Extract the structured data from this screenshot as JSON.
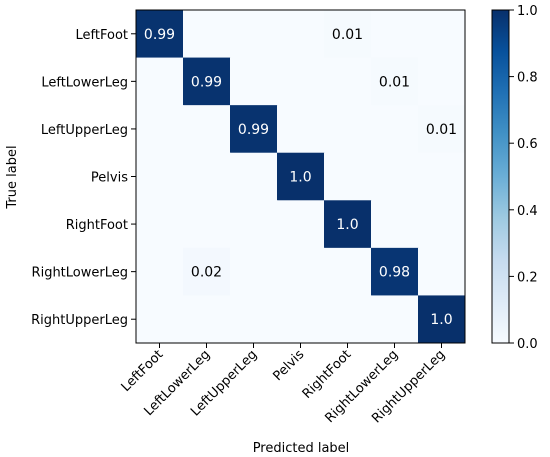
{
  "chart_data": {
    "type": "heatmap",
    "xlabel": "Predicted label",
    "ylabel": "True label",
    "row_labels": [
      "LeftFoot",
      "LeftLowerLeg",
      "LeftUpperLeg",
      "Pelvis",
      "RightFoot",
      "RightLowerLeg",
      "RightUpperLeg"
    ],
    "col_labels": [
      "LeftFoot",
      "LeftLowerLeg",
      "LeftUpperLeg",
      "Pelvis",
      "RightFoot",
      "RightLowerLeg",
      "RightUpperLeg"
    ],
    "values": [
      [
        0.99,
        0,
        0,
        0,
        0.01,
        0,
        0
      ],
      [
        0,
        0.99,
        0,
        0,
        0,
        0.01,
        0
      ],
      [
        0,
        0,
        0.99,
        0,
        0,
        0,
        0.01
      ],
      [
        0,
        0,
        0,
        1.0,
        0,
        0,
        0
      ],
      [
        0,
        0,
        0,
        0,
        1.0,
        0,
        0
      ],
      [
        0,
        0.02,
        0,
        0,
        0,
        0.98,
        0
      ],
      [
        0,
        0,
        0,
        0,
        0,
        0,
        1.0
      ]
    ],
    "cell_labels": [
      [
        "0.99",
        "",
        "",
        "",
        "0.01",
        "",
        ""
      ],
      [
        "",
        "0.99",
        "",
        "",
        "",
        "0.01",
        ""
      ],
      [
        "",
        "",
        "0.99",
        "",
        "",
        "",
        "0.01"
      ],
      [
        "",
        "",
        "",
        "1.0",
        "",
        "",
        ""
      ],
      [
        "",
        "",
        "",
        "",
        "1.0",
        "",
        ""
      ],
      [
        "",
        "0.02",
        "",
        "",
        "",
        "0.98",
        ""
      ],
      [
        "",
        "",
        "",
        "",
        "",
        "",
        "1.0"
      ]
    ],
    "colorbar": {
      "range": [
        0,
        1
      ],
      "ticks": [
        "0.0",
        "0.2",
        "0.4",
        "0.6",
        "0.8",
        "1.0"
      ],
      "colormap": "Blues",
      "low_color": "#f7fbff",
      "high_color": "#08306b"
    }
  }
}
